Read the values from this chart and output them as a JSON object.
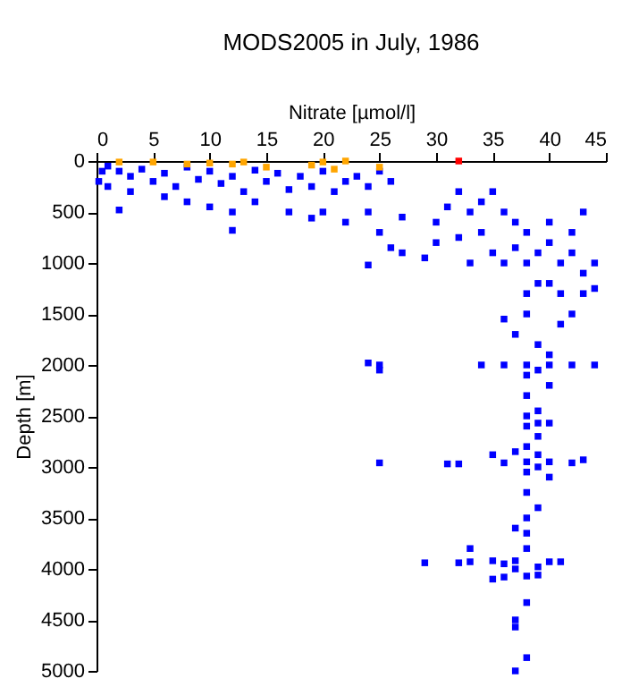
{
  "chart_data": {
    "type": "scatter",
    "title": "MODS2005 in July, 1986",
    "xlabel": "Nitrate [µmol/l]",
    "ylabel": "Depth [m]",
    "xlim": [
      0,
      45
    ],
    "xticks": [
      0,
      5,
      10,
      15,
      20,
      25,
      30,
      35,
      40,
      45
    ],
    "ylim": [
      5000,
      0
    ],
    "yticks": [
      0,
      500,
      1000,
      1500,
      2000,
      2500,
      3000,
      3500,
      4000,
      4500,
      5000
    ],
    "marker": "square",
    "series": [
      {
        "color": "#0000ff",
        "x": [
          0.5,
          1,
          0.2,
          1,
          2,
          3,
          4,
          5,
          6,
          7,
          8,
          9,
          10,
          11,
          12,
          13,
          14,
          15,
          16,
          17,
          18,
          19,
          20,
          21,
          22,
          23,
          24,
          25,
          26,
          3,
          2,
          6,
          8,
          10,
          12,
          12,
          14,
          17,
          20,
          19,
          22,
          24,
          27,
          25,
          26,
          30,
          27,
          24,
          32,
          31,
          33,
          34,
          35,
          36,
          37,
          38,
          34,
          32,
          30,
          29,
          33,
          35,
          36,
          37,
          38,
          39,
          40,
          41,
          42,
          43,
          44,
          40,
          42,
          43,
          39,
          41,
          43,
          38,
          40,
          42,
          36,
          38,
          41,
          44,
          37,
          39,
          40,
          38,
          40,
          42,
          44,
          36,
          34,
          25,
          24,
          25,
          39,
          38,
          40,
          38,
          39,
          38,
          39,
          40,
          38,
          39,
          38,
          37,
          35,
          39,
          38,
          40,
          36,
          25,
          31,
          32,
          43,
          42,
          39,
          38,
          40,
          38,
          39,
          38,
          37,
          38,
          33,
          38,
          29,
          32,
          33,
          35,
          36,
          37,
          40,
          41,
          39,
          37,
          38,
          36,
          39,
          35,
          38,
          37,
          37,
          38,
          37
        ],
        "values": [
          100,
          250,
          200,
          50,
          100,
          150,
          80,
          200,
          120,
          250,
          60,
          180,
          100,
          220,
          150,
          300,
          90,
          200,
          120,
          280,
          150,
          250,
          100,
          300,
          200,
          150,
          250,
          100,
          200,
          300,
          480,
          350,
          400,
          450,
          500,
          680,
          400,
          500,
          500,
          560,
          600,
          500,
          550,
          700,
          850,
          600,
          900,
          1020,
          300,
          450,
          500,
          400,
          300,
          500,
          600,
          700,
          700,
          750,
          800,
          950,
          1000,
          900,
          1000,
          850,
          1000,
          900,
          800,
          1000,
          900,
          1100,
          1000,
          600,
          700,
          500,
          1200,
          1300,
          1300,
          1300,
          1200,
          1500,
          1550,
          1500,
          1600,
          1250,
          1700,
          1800,
          1900,
          2000,
          2000,
          2000,
          2000,
          2000,
          2000,
          2000,
          1980,
          2050,
          2050,
          2100,
          2200,
          2300,
          2450,
          2500,
          2570,
          2570,
          2600,
          2700,
          2800,
          2850,
          2880,
          2880,
          2950,
          2950,
          2960,
          2960,
          2970,
          2970,
          2930,
          2960,
          3000,
          3050,
          3100,
          3250,
          3400,
          3500,
          3600,
          3650,
          3800,
          3800,
          3940,
          3940,
          3930,
          3920,
          3950,
          3920,
          3930,
          3930,
          3980,
          4000,
          4070,
          4080,
          4060,
          4100,
          4330,
          4500,
          4570,
          4870,
          5000
        ]
      },
      {
        "color": "#ffa500",
        "x": [
          2,
          5,
          8,
          10,
          12,
          13,
          15,
          19,
          20,
          21,
          22,
          25
        ],
        "values": [
          10,
          10,
          30,
          20,
          30,
          10,
          60,
          40,
          10,
          80,
          0,
          60
        ]
      },
      {
        "color": "#ff0000",
        "x": [
          32
        ],
        "values": [
          0
        ]
      }
    ]
  }
}
